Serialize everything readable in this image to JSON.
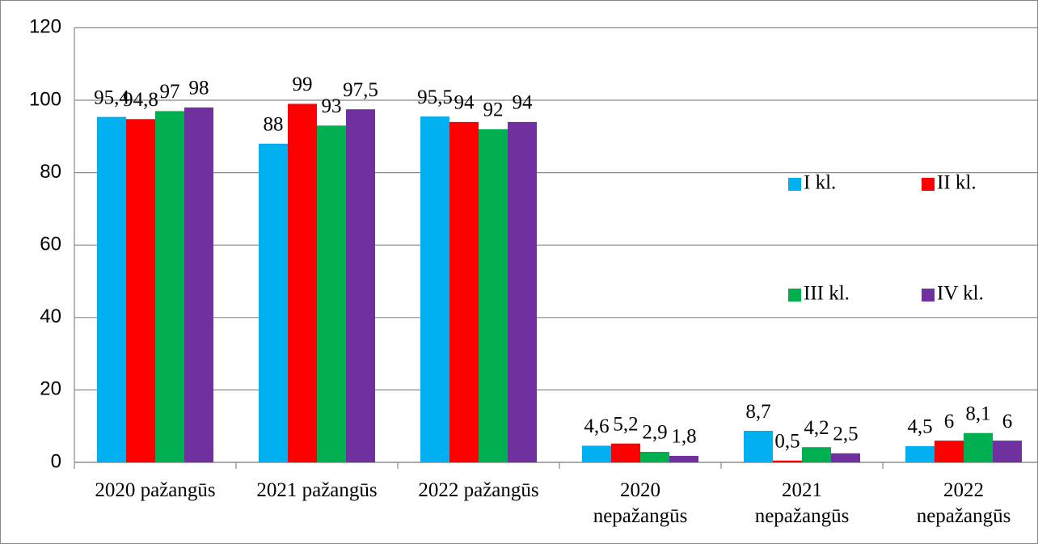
{
  "chart_data": {
    "type": "bar",
    "categories": [
      [
        "2020 pažangūs"
      ],
      [
        "2021 pažangūs"
      ],
      [
        "2022 pažangūs"
      ],
      [
        "2020",
        "nepažangūs"
      ],
      [
        "2021",
        "nepažangūs"
      ],
      [
        "2022",
        "nepažangūs"
      ]
    ],
    "series": [
      {
        "name": "I kl.",
        "color": "#00b0f0",
        "values": [
          95.4,
          88,
          95.5,
          4.6,
          8.7,
          4.5
        ],
        "value_labels": [
          "95,4",
          "88",
          "95,5",
          "4,6",
          "8,7",
          "4,5"
        ]
      },
      {
        "name": "II kl.",
        "color": "#ff0000",
        "values": [
          94.8,
          99,
          94,
          5.2,
          0.5,
          6
        ],
        "value_labels": [
          "94,8",
          "99",
          "94",
          "5,2",
          "0,5",
          "6"
        ]
      },
      {
        "name": "III kl.",
        "color": "#00b050",
        "values": [
          97,
          93,
          92,
          2.9,
          4.2,
          8.1
        ],
        "value_labels": [
          "97",
          "93",
          "92",
          "2,9",
          "4,2",
          "8,1"
        ]
      },
      {
        "name": "IV kl.",
        "color": "#7030a0",
        "values": [
          98,
          97.5,
          94,
          1.8,
          2.5,
          6
        ],
        "value_labels": [
          "98",
          "97,5",
          "94",
          "1,8",
          "2,5",
          "6"
        ]
      }
    ],
    "ylim": [
      0,
      120
    ],
    "yticks": [
      0,
      20,
      40,
      60,
      80,
      100,
      120
    ],
    "grid": true,
    "legend": "right"
  }
}
